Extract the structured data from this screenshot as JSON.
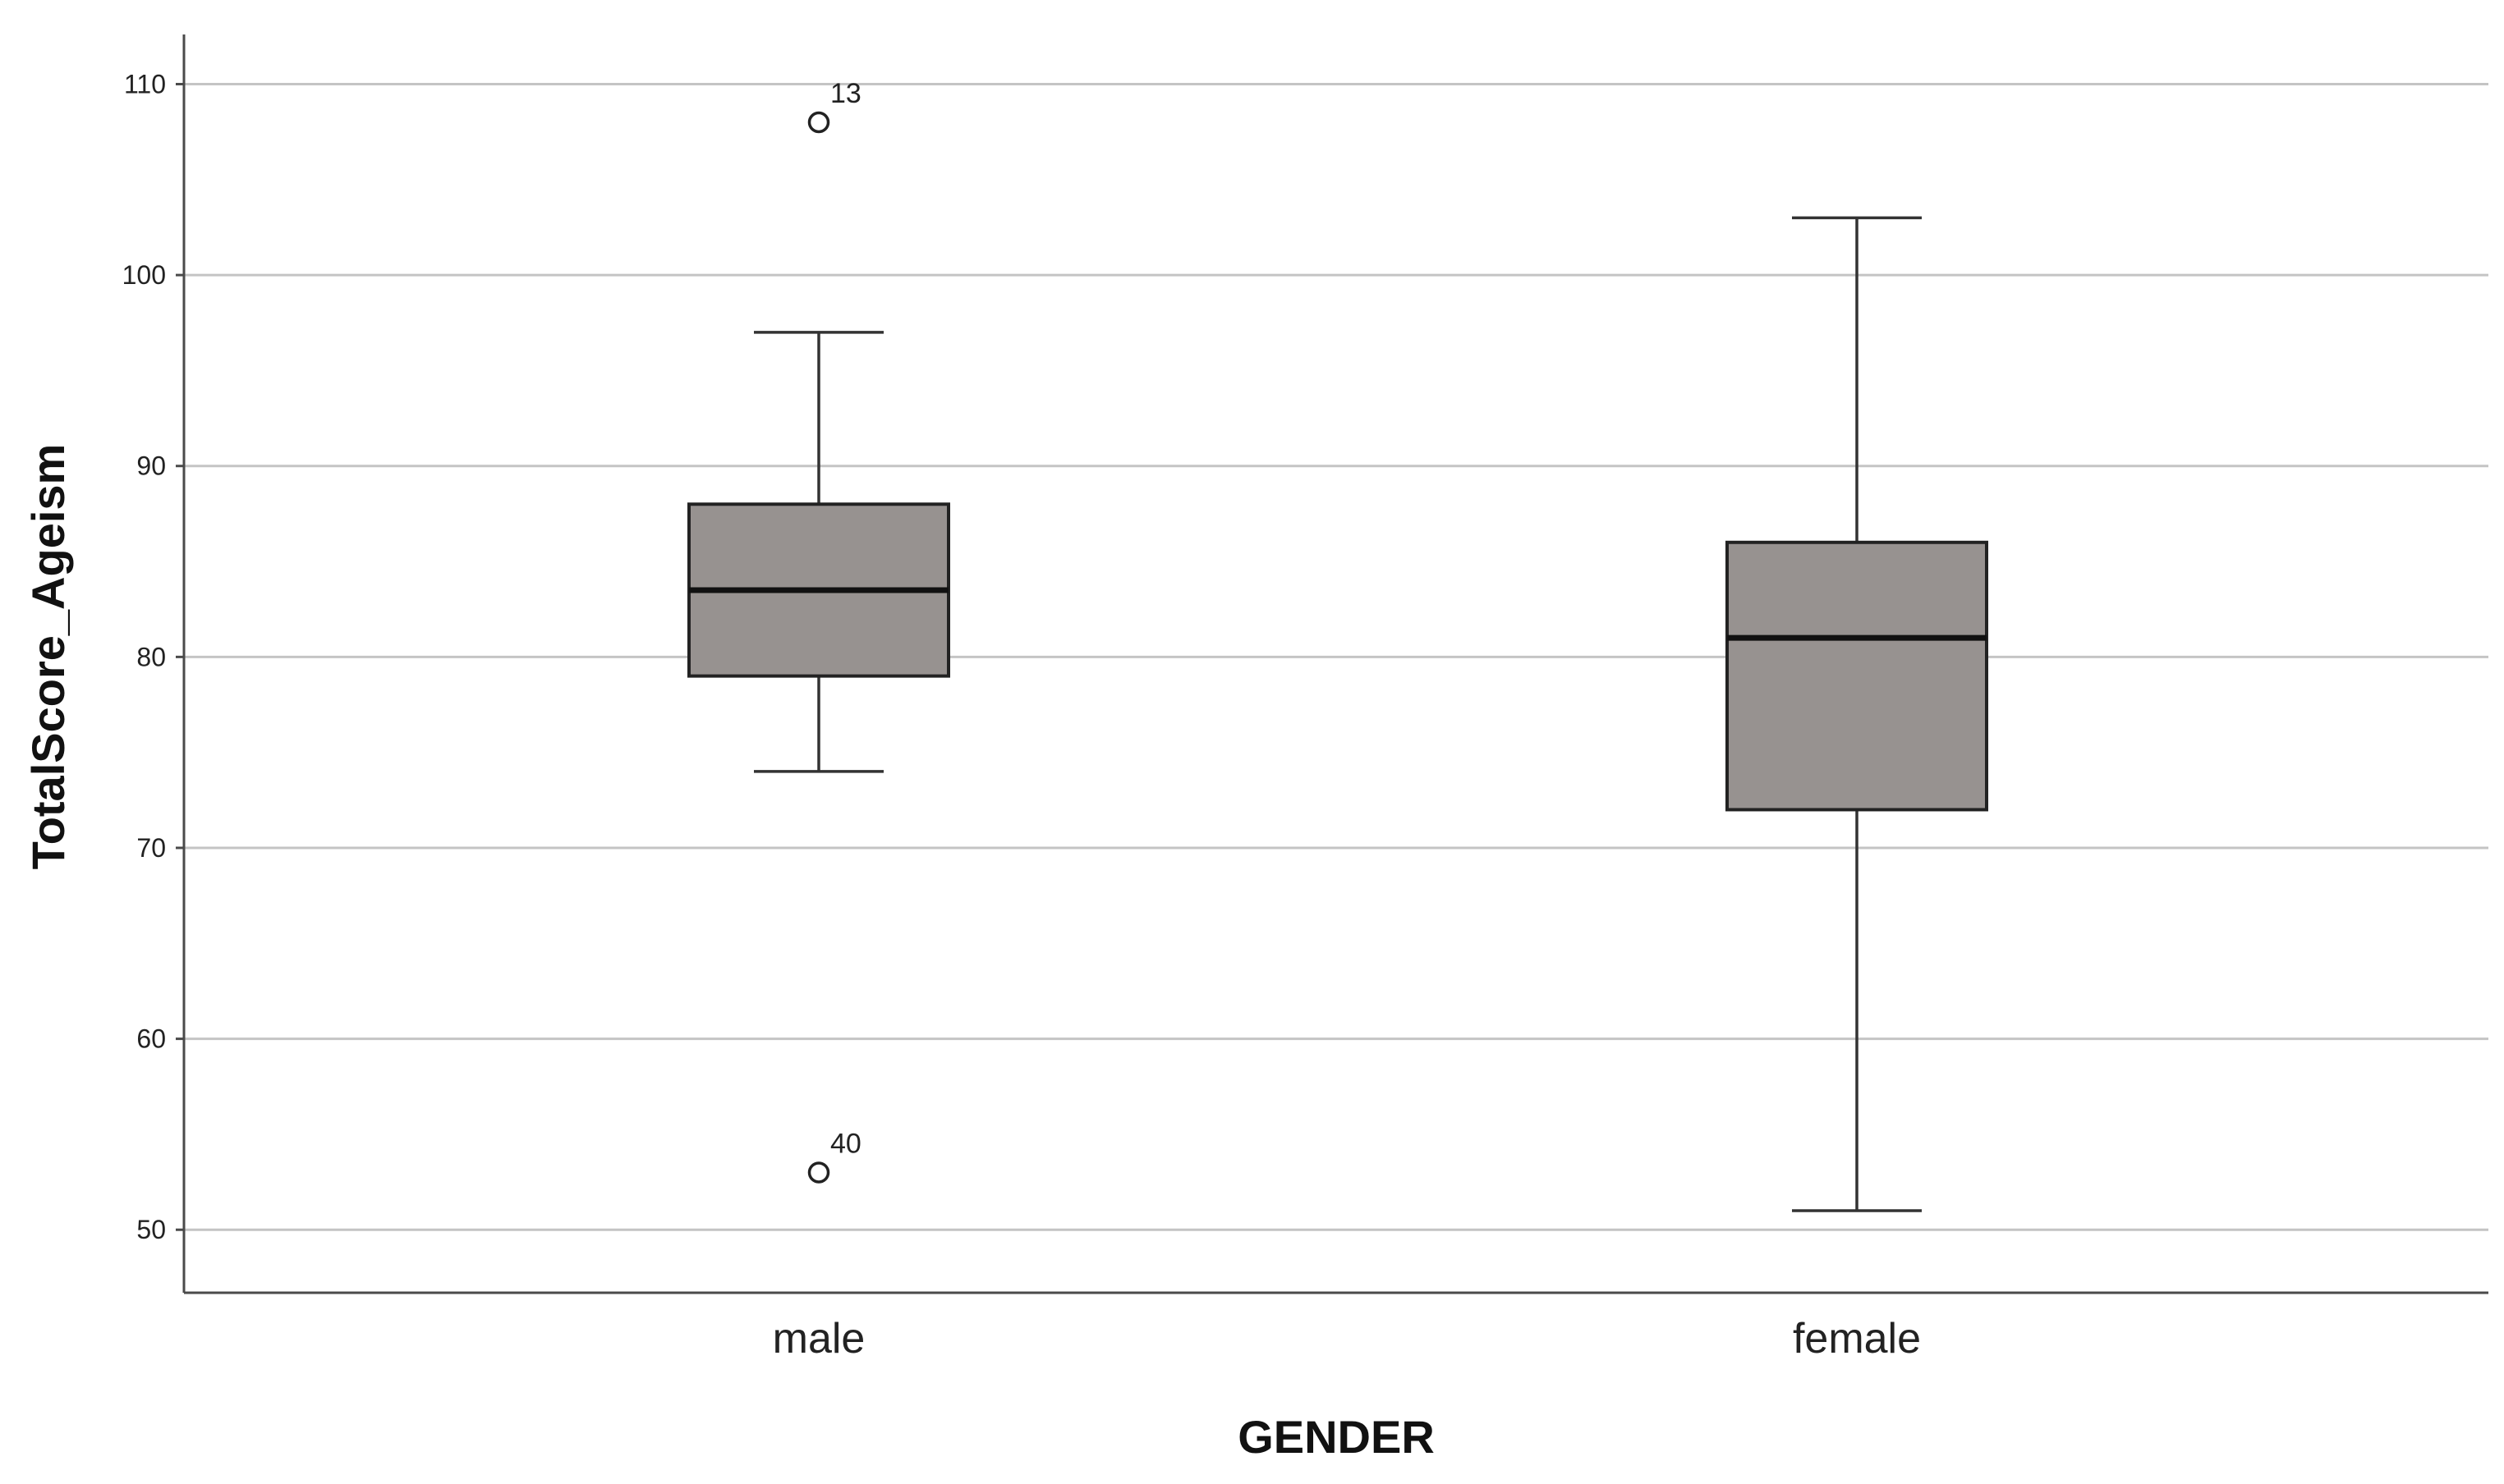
{
  "chart_data": {
    "type": "boxplot",
    "title": "",
    "xlabel": "GENDER",
    "ylabel": "TotalScore_Ageism",
    "ylim": [
      46.7,
      112.6
    ],
    "yticks": [
      50,
      60,
      70,
      80,
      90,
      100,
      110
    ],
    "grid": true,
    "box_color": "#979290",
    "categories": [
      "male",
      "female"
    ],
    "boxes": [
      {
        "category": "male",
        "whisker_low": 74,
        "q1": 79,
        "median": 83.5,
        "q3": 88,
        "whisker_high": 97,
        "outliers": [
          {
            "value": 108,
            "label": "13"
          },
          {
            "value": 53,
            "label": "40"
          }
        ]
      },
      {
        "category": "female",
        "whisker_low": 51,
        "q1": 72,
        "median": 81,
        "q3": 86,
        "whisker_high": 103,
        "outliers": []
      }
    ]
  }
}
